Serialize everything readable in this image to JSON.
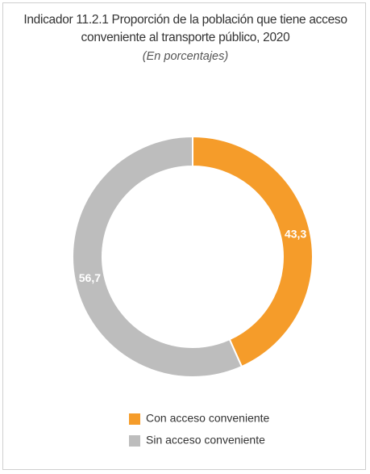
{
  "chart_data": {
    "type": "pie",
    "donut": true,
    "title": "Indicador 11.2.1 Proporción de la población que tiene acceso conveniente al transporte público, 2020",
    "subtitle": "(En porcentajes)",
    "categories": [
      "Con acceso conveniente",
      "Sin acceso conveniente"
    ],
    "values": [
      43.3,
      56.7
    ],
    "value_labels": [
      "43,3",
      "56,7"
    ],
    "colors": [
      "#f59c2a",
      "#bdbdbd"
    ]
  }
}
